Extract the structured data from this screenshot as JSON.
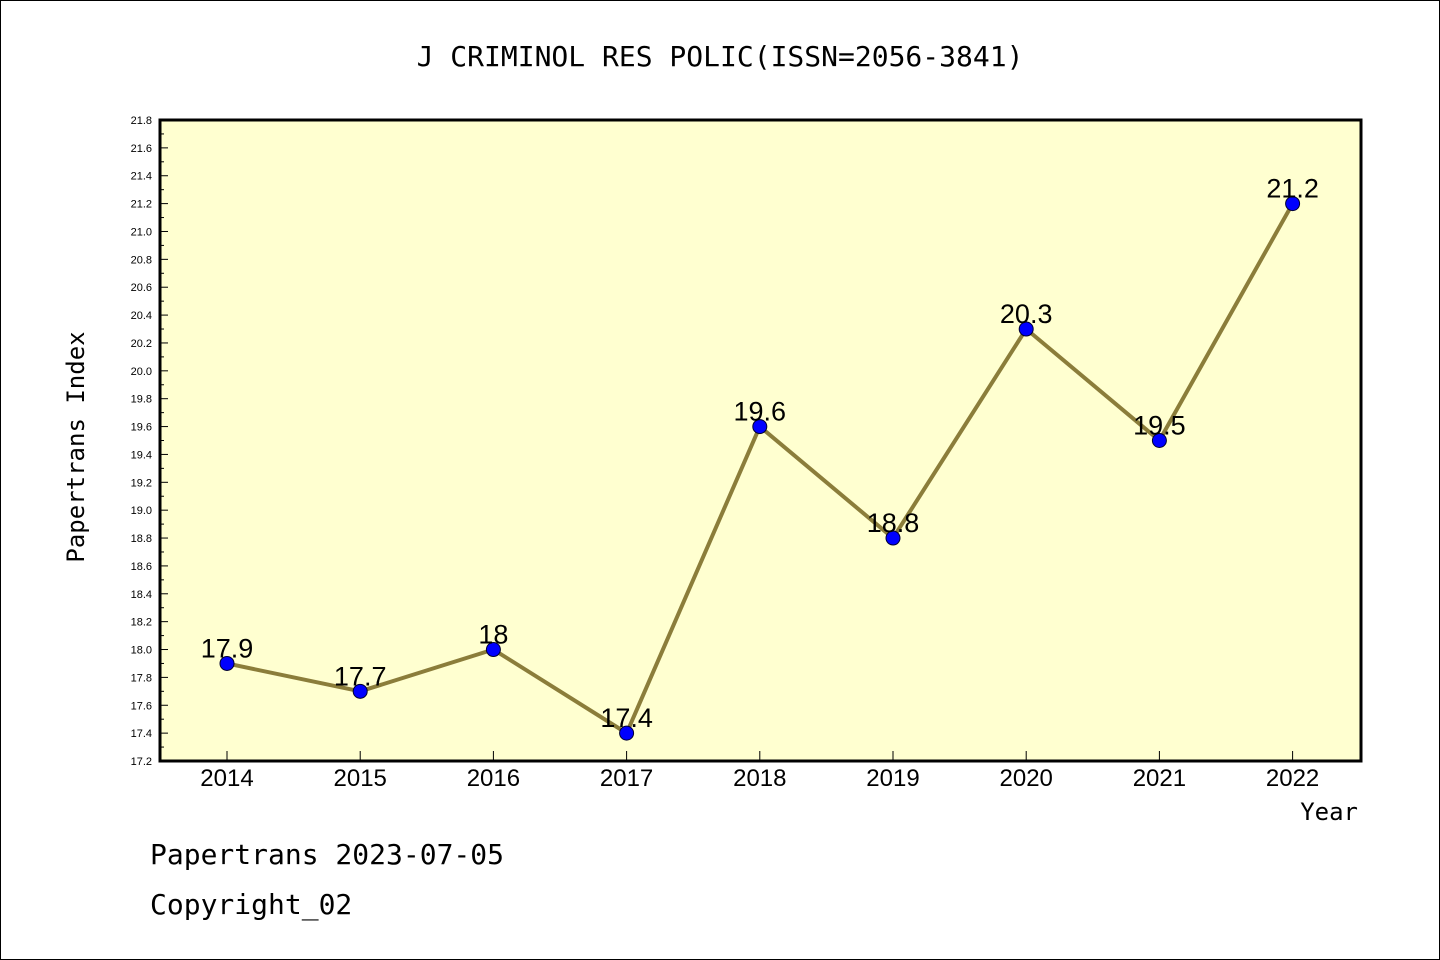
{
  "chart_data": {
    "type": "line",
    "title": "J CRIMINOL RES POLIC(ISSN=2056-3841)",
    "xlabel": "Year",
    "ylabel": "Papertrans Index",
    "categories": [
      "2014",
      "2015",
      "2016",
      "2017",
      "2018",
      "2019",
      "2020",
      "2021",
      "2022"
    ],
    "series": [
      {
        "values": [
          17.9,
          17.7,
          18.0,
          17.4,
          19.6,
          18.8,
          20.3,
          19.5,
          21.2
        ],
        "data_labels": [
          "17.9",
          "17.7",
          "18",
          "17.4",
          "19.6",
          "18.8",
          "20.3",
          "19.5",
          "21.2"
        ]
      }
    ],
    "ylim": [
      17.2,
      21.8
    ],
    "yticks": [
      "17.2",
      "17.4",
      "17.6",
      "17.8",
      "18.0",
      "18.2",
      "18.4",
      "18.6",
      "18.8",
      "19.0",
      "19.2",
      "19.4",
      "19.6",
      "19.8",
      "20.0",
      "20.2",
      "20.4",
      "20.6",
      "20.8",
      "21.0",
      "21.2",
      "21.4",
      "21.6",
      "21.8"
    ],
    "grid": false,
    "colors": {
      "plot_background": "#ffffd0",
      "line": "#8b7d3a",
      "marker": "#0000ff"
    }
  },
  "footer": {
    "line1": "Papertrans 2023-07-05",
    "line2": "Copyright_02"
  }
}
